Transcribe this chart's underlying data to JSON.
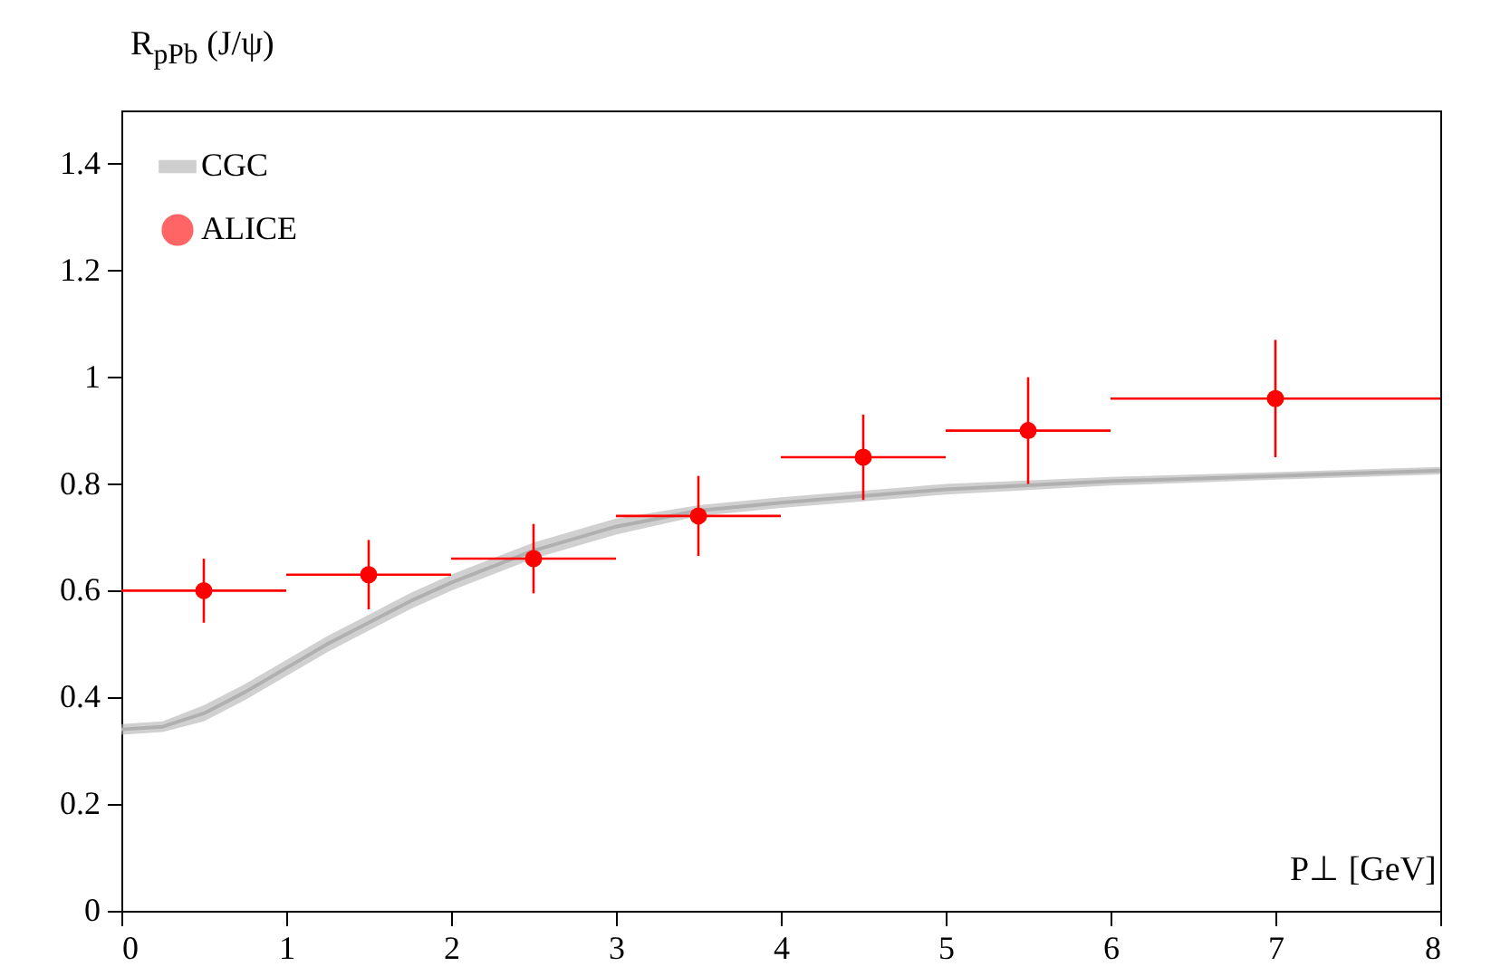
{
  "chart_data": {
    "type": "scatter",
    "xlabel": "P⊥ [GeV]",
    "ylabel": "R$_{pPb}$ (J/ψ)",
    "xlim": [
      0,
      8
    ],
    "xticks": [
      0,
      1,
      2,
      3,
      4,
      5,
      6,
      7,
      8
    ],
    "ylim": [
      0,
      1.5
    ],
    "yticks": [
      0,
      0.2,
      0.4,
      0.6,
      0.8,
      1,
      1.2,
      1.4
    ],
    "legend": "top left",
    "grid": false,
    "series": [
      {
        "name": "CGC",
        "type": "line",
        "color": "#b0b0b0",
        "x": [
          0,
          0.25,
          0.5,
          0.75,
          1,
          1.25,
          1.5,
          1.75,
          2,
          2.5,
          3,
          3.5,
          4,
          5,
          6,
          7,
          8
        ],
        "values": [
          0.34,
          0.345,
          0.37,
          0.41,
          0.455,
          0.5,
          0.54,
          0.58,
          0.615,
          0.675,
          0.72,
          0.75,
          0.765,
          0.79,
          0.805,
          0.815,
          0.825
        ],
        "lower": [
          0.33,
          0.335,
          0.355,
          0.395,
          0.44,
          0.485,
          0.525,
          0.565,
          0.6,
          0.66,
          0.705,
          0.74,
          0.755,
          0.78,
          0.797,
          0.808,
          0.818
        ],
        "upper": [
          0.35,
          0.355,
          0.385,
          0.425,
          0.47,
          0.515,
          0.555,
          0.595,
          0.63,
          0.69,
          0.735,
          0.76,
          0.775,
          0.8,
          0.813,
          0.822,
          0.832
        ]
      },
      {
        "name": "ALICE",
        "type": "scatter",
        "color": "#ff0000",
        "marker": "circle",
        "x": [
          0.5,
          1.5,
          2.5,
          3.5,
          4.5,
          5.5,
          7
        ],
        "values": [
          0.6,
          0.63,
          0.66,
          0.74,
          0.85,
          0.9,
          0.96
        ],
        "errors": [
          0.06,
          0.065,
          0.065,
          0.075,
          0.08,
          0.1,
          0.11
        ],
        "xerrors": [
          0.5,
          0.5,
          0.5,
          0.5,
          0.5,
          0.5,
          1
        ]
      }
    ]
  }
}
